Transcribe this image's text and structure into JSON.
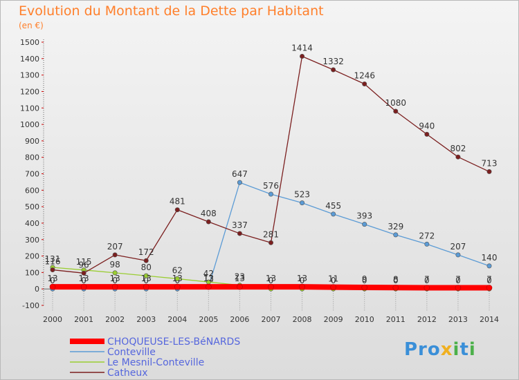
{
  "chart_data": {
    "type": "line",
    "title": "Evolution du Montant de la Dette par Habitant",
    "subtitle": "(en €)",
    "x": [
      2000,
      2001,
      2002,
      2003,
      2004,
      2005,
      2006,
      2007,
      2008,
      2009,
      2010,
      2011,
      2012,
      2013,
      2014
    ],
    "ylim": [
      -100,
      1500
    ],
    "yticks": [
      -100,
      0,
      100,
      200,
      300,
      400,
      500,
      600,
      700,
      800,
      900,
      1000,
      1100,
      1200,
      1300,
      1400,
      1500
    ],
    "grid": false,
    "legend_position": "bottom-left",
    "series": [
      {
        "name": "CHOQUEUSE-LES-BéNARDS",
        "color": "#ff0000",
        "values": [
          13,
          13,
          13,
          13,
          13,
          13,
          13,
          13,
          13,
          11,
          9,
          8,
          7,
          7,
          7
        ]
      },
      {
        "name": "Conteville",
        "color": "#5b9bd5",
        "values": [
          0,
          0,
          0,
          0,
          0,
          12,
          647,
          576,
          523,
          455,
          393,
          329,
          272,
          207,
          140
        ]
      },
      {
        "name": "Le Mesnil-Conteville",
        "color": "#9acd32",
        "values": [
          131,
          115,
          98,
          80,
          62,
          42,
          23,
          0,
          0,
          0,
          0,
          0,
          0,
          0,
          0
        ]
      },
      {
        "name": "Catheux",
        "color": "#7b1f1f",
        "values": [
          116,
          96,
          207,
          172,
          481,
          408,
          337,
          281,
          1414,
          1332,
          1246,
          1080,
          940,
          802,
          713
        ]
      }
    ]
  },
  "brand": {
    "p1": "Pro",
    "x": "x",
    "i": "i",
    "p2": "t",
    "p3": "i"
  }
}
